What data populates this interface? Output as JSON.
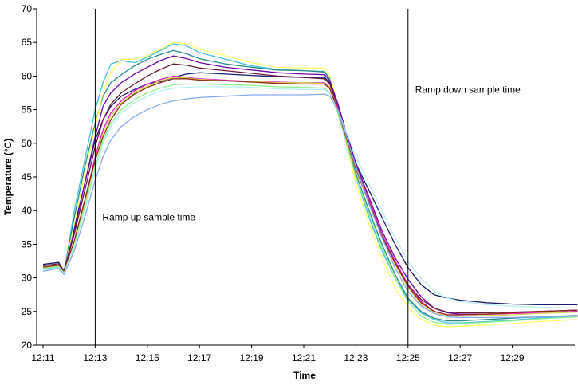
{
  "chart_data": {
    "type": "line",
    "title": "",
    "xlabel": "Time",
    "ylabel": "Temperature (°C)",
    "ylim": [
      20,
      70
    ],
    "yticks": [
      20,
      25,
      30,
      35,
      40,
      45,
      50,
      55,
      60,
      65,
      70
    ],
    "xlim": [
      0,
      20.5
    ],
    "xticks": [
      {
        "x": 0,
        "label": "12:11"
      },
      {
        "x": 2,
        "label": "12:13"
      },
      {
        "x": 4,
        "label": "12:15"
      },
      {
        "x": 6,
        "label": "12:17"
      },
      {
        "x": 8,
        "label": "12:19"
      },
      {
        "x": 10,
        "label": "12:21"
      },
      {
        "x": 12,
        "label": "12:23"
      },
      {
        "x": 14,
        "label": "12:25"
      },
      {
        "x": 16,
        "label": "12:27"
      },
      {
        "x": 18,
        "label": "12:29"
      }
    ],
    "grid": false,
    "legend": "none",
    "x": [
      0,
      0.6,
      0.8,
      1.2,
      1.6,
      2.0,
      2.3,
      2.6,
      3.0,
      3.5,
      4.0,
      4.5,
      5.0,
      5.5,
      6.0,
      7.0,
      8.0,
      9.0,
      10.0,
      10.8,
      11.0,
      11.3,
      11.6,
      12.0,
      12.5,
      13.0,
      13.5,
      14.0,
      14.5,
      15.0,
      15.5,
      16.0,
      17.0,
      18.0,
      19.0,
      20.5
    ],
    "series": [
      {
        "color": "#1a1a6e",
        "values": [
          32.0,
          32.3,
          31.0,
          37.5,
          44.0,
          50.5,
          53.5,
          55.5,
          57.0,
          58.0,
          58.8,
          59.2,
          59.8,
          60.3,
          60.5,
          60.3,
          60.1,
          59.9,
          59.8,
          59.8,
          59.0,
          56.0,
          52.0,
          47.0,
          43.0,
          39.0,
          35.0,
          31.5,
          29.0,
          27.5,
          27.0,
          26.7,
          26.3,
          26.1,
          26.0,
          26.0
        ]
      },
      {
        "color": "#40c0d8",
        "values": [
          31.3,
          31.6,
          30.6,
          40.0,
          47.5,
          55.0,
          59.0,
          61.8,
          62.3,
          62.0,
          62.8,
          63.8,
          64.8,
          64.5,
          63.5,
          62.5,
          61.5,
          61.0,
          60.8,
          60.7,
          59.5,
          56.0,
          51.5,
          45.0,
          39.0,
          34.0,
          30.0,
          26.8,
          24.8,
          23.8,
          23.3,
          23.3,
          23.5,
          23.7,
          24.0,
          24.3
        ]
      },
      {
        "color": "#2a8a8a",
        "values": [
          31.4,
          31.8,
          30.8,
          39.0,
          46.5,
          53.0,
          57.0,
          59.0,
          60.2,
          61.5,
          62.5,
          63.2,
          63.8,
          63.3,
          62.6,
          61.8,
          61.3,
          60.9,
          60.8,
          60.6,
          59.6,
          56.0,
          51.0,
          45.5,
          40.0,
          35.0,
          30.5,
          27.0,
          25.0,
          24.0,
          23.6,
          23.6,
          23.8,
          24.0,
          24.2,
          24.4
        ]
      },
      {
        "color": "#ffff66",
        "values": [
          31.5,
          31.8,
          30.8,
          38.0,
          45.5,
          52.5,
          57.5,
          60.5,
          62.5,
          62.5,
          63.0,
          64.0,
          65.0,
          64.8,
          64.0,
          63.0,
          62.0,
          61.3,
          61.2,
          61.2,
          60.0,
          56.0,
          50.5,
          44.0,
          38.0,
          33.0,
          28.5,
          25.6,
          23.8,
          23.0,
          22.7,
          22.8,
          23.0,
          23.2,
          23.5,
          23.8
        ]
      },
      {
        "color": "#6a0aa8",
        "values": [
          31.6,
          31.9,
          31.0,
          37.0,
          44.0,
          51.0,
          55.5,
          57.5,
          59.0,
          60.3,
          61.3,
          62.3,
          63.0,
          62.6,
          62.0,
          61.3,
          60.9,
          60.5,
          60.3,
          60.2,
          59.3,
          56.0,
          52.0,
          47.0,
          42.0,
          37.0,
          33.0,
          29.8,
          27.2,
          25.5,
          24.8,
          24.6,
          24.6,
          24.7,
          24.8,
          25.0
        ]
      },
      {
        "color": "#6b1a3a",
        "values": [
          31.8,
          32.1,
          31.0,
          36.5,
          43.0,
          49.5,
          53.5,
          55.8,
          57.5,
          58.8,
          60.0,
          61.0,
          61.8,
          61.6,
          61.2,
          60.8,
          60.4,
          60.0,
          59.8,
          59.6,
          58.8,
          55.5,
          51.5,
          46.5,
          41.5,
          36.5,
          32.5,
          29.0,
          26.8,
          25.5,
          24.9,
          24.8,
          24.8,
          24.9,
          25.0,
          25.2
        ]
      },
      {
        "color": "#e020c0",
        "values": [
          31.5,
          31.8,
          30.8,
          35.5,
          41.5,
          48.0,
          52.0,
          54.5,
          56.3,
          57.8,
          58.8,
          59.5,
          60.0,
          59.8,
          59.6,
          59.4,
          59.2,
          59.1,
          59.0,
          59.0,
          58.3,
          55.3,
          51.5,
          46.5,
          41.5,
          36.5,
          32.5,
          29.0,
          26.5,
          25.0,
          24.5,
          24.5,
          24.6,
          24.7,
          24.8,
          25.0
        ]
      },
      {
        "color": "#d8d850",
        "values": [
          31.5,
          31.8,
          30.8,
          35.0,
          41.0,
          47.5,
          51.5,
          54.0,
          56.0,
          57.5,
          58.5,
          59.3,
          59.8,
          59.7,
          59.5,
          59.3,
          59.2,
          59.0,
          59.0,
          58.9,
          58.2,
          55.0,
          51.0,
          46.0,
          41.0,
          36.0,
          32.0,
          28.5,
          26.0,
          24.8,
          24.3,
          24.3,
          24.4,
          24.5,
          24.7,
          24.9
        ]
      },
      {
        "color": "#8a2a18",
        "values": [
          31.6,
          31.9,
          31.0,
          35.5,
          41.5,
          47.5,
          51.0,
          53.5,
          55.8,
          57.3,
          58.3,
          59.0,
          59.6,
          59.6,
          59.4,
          59.3,
          59.1,
          58.9,
          58.8,
          58.8,
          58.1,
          55.0,
          51.2,
          46.2,
          41.2,
          36.2,
          32.2,
          28.8,
          26.3,
          25.0,
          24.5,
          24.5,
          24.6,
          24.8,
          25.0,
          25.2
        ]
      },
      {
        "color": "#90f090",
        "values": [
          31.4,
          31.7,
          30.7,
          35.0,
          40.5,
          46.5,
          50.5,
          53.0,
          55.0,
          56.5,
          57.5,
          58.2,
          58.7,
          58.8,
          58.8,
          58.7,
          58.6,
          58.4,
          58.3,
          58.2,
          57.5,
          54.5,
          50.5,
          45.0,
          39.5,
          34.5,
          30.0,
          26.5,
          24.3,
          23.4,
          23.1,
          23.2,
          23.4,
          23.6,
          23.9,
          24.2
        ]
      },
      {
        "color": "#b8f0f0",
        "values": [
          31.2,
          31.5,
          30.6,
          34.5,
          40.0,
          46.0,
          50.0,
          52.5,
          54.5,
          56.0,
          57.0,
          57.8,
          58.2,
          58.3,
          58.4,
          58.4,
          58.3,
          58.1,
          58.0,
          58.0,
          57.4,
          55.0,
          52.0,
          48.0,
          44.0,
          40.0,
          36.0,
          32.5,
          30.0,
          28.0,
          27.0,
          26.5,
          26.0,
          25.8,
          25.6,
          25.5
        ]
      },
      {
        "color": "#88aaee",
        "values": [
          31.0,
          31.4,
          30.5,
          34.0,
          39.0,
          44.5,
          48.0,
          50.5,
          52.5,
          54.0,
          55.0,
          55.8,
          56.3,
          56.6,
          56.8,
          57.0,
          57.2,
          57.2,
          57.2,
          57.3,
          57.0,
          55.0,
          51.5,
          46.5,
          41.0,
          36.0,
          31.5,
          28.0,
          25.8,
          24.7,
          24.2,
          24.1,
          24.1,
          24.1,
          24.2,
          24.3
        ]
      }
    ],
    "markers": [
      {
        "x": 2.0,
        "label": "Ramp up sample time",
        "label_y": 39
      },
      {
        "x": 14.0,
        "label": "Ramp down sample time",
        "label_y": 58
      }
    ]
  }
}
